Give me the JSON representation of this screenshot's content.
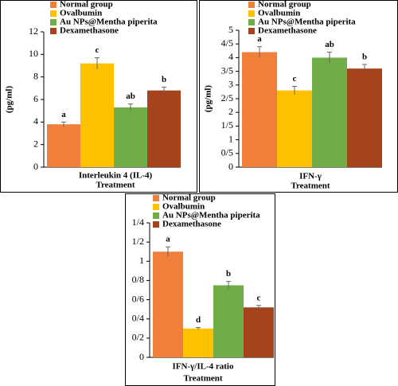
{
  "chart_data": [
    {
      "type": "bar",
      "y_label": "(pg/ml)",
      "x_label": "Interleukin 4 (IL-4)",
      "x_title": "Treatment",
      "ylim": [
        0,
        12
      ],
      "yticks": [
        0,
        2,
        4,
        6,
        8,
        10,
        12
      ],
      "series": [
        {
          "name": "Normal group",
          "color": "#f07f3c",
          "values": [
            3.8
          ],
          "errors": [
            0.2
          ],
          "annotations": [
            "a"
          ]
        },
        {
          "name": "Ovalbumin",
          "color": "#ffc000",
          "values": [
            9.2
          ],
          "errors": [
            0.5
          ],
          "annotations": [
            "c"
          ]
        },
        {
          "name": "Au NPs@Mentha piperita",
          "color": "#70ad47",
          "values": [
            5.3
          ],
          "errors": [
            0.3
          ],
          "annotations": [
            "ab"
          ]
        },
        {
          "name": "Dexamethasone",
          "color": "#a5431c",
          "values": [
            6.8
          ],
          "errors": [
            0.3
          ],
          "annotations": [
            "b"
          ]
        }
      ]
    },
    {
      "type": "bar",
      "y_label": "(pg/ml)",
      "x_label": "IFN-γ",
      "x_title": "Treatment",
      "ylim": [
        0,
        5
      ],
      "yticks": [
        0,
        {
          "value": 0.5,
          "label": "0/5"
        },
        1,
        {
          "value": 1.5,
          "label": "1/5"
        },
        2,
        {
          "value": 2.5,
          "label": "2/5"
        },
        3,
        {
          "value": 3.5,
          "label": "3/5"
        },
        4,
        {
          "value": 4.5,
          "label": "4/5"
        },
        5
      ],
      "series": [
        {
          "name": "Normal group",
          "color": "#f07f3c",
          "values": [
            4.2
          ],
          "errors": [
            0.2
          ],
          "annotations": [
            "a"
          ]
        },
        {
          "name": "Ovalbumin",
          "color": "#ffc000",
          "values": [
            2.8
          ],
          "errors": [
            0.15
          ],
          "annotations": [
            "c"
          ]
        },
        {
          "name": "Au NPs@Mentha piperita",
          "color": "#70ad47",
          "values": [
            4.0
          ],
          "errors": [
            0.2
          ],
          "annotations": [
            "ab"
          ]
        },
        {
          "name": "Dexamethasone",
          "color": "#a5431c",
          "values": [
            3.6
          ],
          "errors": [
            0.15
          ],
          "annotations": [
            "b"
          ]
        }
      ]
    },
    {
      "type": "bar",
      "x_label": "IFN-γ/IL-4 ratio",
      "x_title": "Treatment",
      "ylim": [
        0,
        1.4
      ],
      "yticks": [
        0,
        {
          "value": 0.2,
          "label": "0/2"
        },
        {
          "value": 0.4,
          "label": "0/4"
        },
        {
          "value": 0.6,
          "label": "0/6"
        },
        {
          "value": 0.8,
          "label": "0/8"
        },
        1,
        {
          "value": 1.2,
          "label": "1/2"
        },
        {
          "value": 1.4,
          "label": "1/4"
        }
      ],
      "series": [
        {
          "name": "Normal group",
          "color": "#f07f3c",
          "values": [
            1.1
          ],
          "errors": [
            0.05
          ],
          "annotations": [
            "a"
          ]
        },
        {
          "name": "Ovalbumin",
          "color": "#ffc000",
          "values": [
            0.3
          ],
          "errors": [
            0.01
          ],
          "annotations": [
            "d"
          ]
        },
        {
          "name": "Au NPs@Mentha piperita",
          "color": "#70ad47",
          "values": [
            0.75
          ],
          "errors": [
            0.04
          ],
          "annotations": [
            "b"
          ]
        },
        {
          "name": "Dexamethasone",
          "color": "#a5431c",
          "values": [
            0.52
          ],
          "errors": [
            0.02
          ],
          "annotations": [
            "c"
          ]
        }
      ]
    }
  ]
}
